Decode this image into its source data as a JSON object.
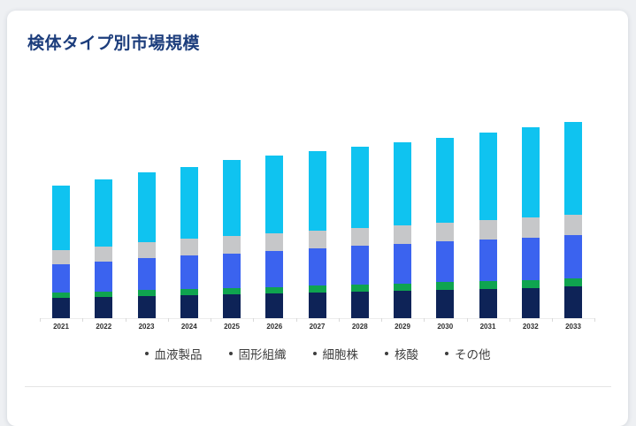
{
  "page": {
    "background_color": "#eef0f3",
    "card_color": "#ffffff"
  },
  "card": {
    "title": "検体タイプ別市場規模",
    "title_color": "#1c3d7c"
  },
  "legend": {
    "items": [
      {
        "label": "血液製品"
      },
      {
        "label": "固形組織"
      },
      {
        "label": "細胞株"
      },
      {
        "label": "核酸"
      },
      {
        "label": "その他"
      }
    ]
  },
  "chart_data": {
    "type": "bar",
    "stacked": true,
    "title": "検体タイプ別市場規模",
    "xlabel": "",
    "ylabel": "",
    "y_axis_labels_visible": false,
    "units": "relative height (no y-axis scale shown in image)",
    "grid": false,
    "legend_position": "bottom",
    "categories": [
      "2021",
      "2022",
      "2023",
      "2024",
      "2025",
      "2026",
      "2027",
      "2028",
      "2029",
      "2030",
      "2031",
      "2032",
      "2033"
    ],
    "series": [
      {
        "name": "血液製品",
        "color": "#0e2357",
        "values": [
          23,
          24,
          25,
          26,
          27,
          28,
          29,
          30,
          31,
          32,
          33,
          34,
          36
        ]
      },
      {
        "name": "固形組織",
        "color": "#0fa44f",
        "values": [
          6,
          6,
          7,
          7,
          7,
          7,
          8,
          8,
          8,
          9,
          9,
          9,
          9
        ]
      },
      {
        "name": "細胞株",
        "color": "#3b63ef",
        "values": [
          32,
          34,
          36,
          38,
          39,
          41,
          42,
          44,
          45,
          46,
          47,
          48,
          49
        ]
      },
      {
        "name": "核酸",
        "color": "#c6c7c9",
        "values": [
          16,
          17,
          18,
          19,
          20,
          20,
          20,
          20,
          21,
          21,
          22,
          23,
          23
        ]
      },
      {
        "name": "その他",
        "color": "#0fc3f0",
        "values": [
          73,
          76,
          79,
          81,
          86,
          88,
          90,
          92,
          94,
          96,
          99,
          102,
          105
        ]
      }
    ],
    "stack_order_bottom_to_top": [
      "血液製品",
      "固形組織",
      "細胞株",
      "核酸",
      "その他"
    ],
    "totals_by_year": [
      150,
      157,
      166,
      171,
      179,
      184,
      189,
      194,
      199,
      204,
      210,
      216,
      222
    ]
  }
}
